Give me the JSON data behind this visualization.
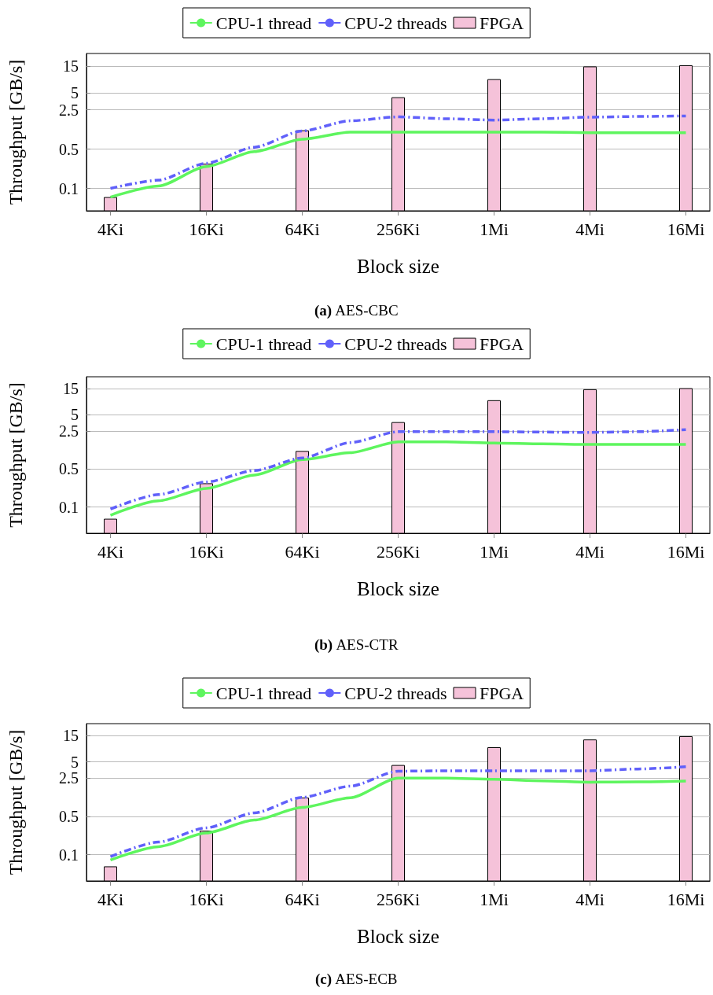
{
  "chart_data": [
    {
      "type": "bar",
      "title": "(a) AES-CBC",
      "xlabel": "Block size",
      "ylabel": "Throughput [GB/s]",
      "log": "y",
      "grid": "y",
      "legend": "top",
      "marker": "none",
      "categories": [
        "4Ki",
        null,
        "16Ki",
        null,
        "64Ki",
        null,
        "256Ki",
        null,
        "1Mi",
        null,
        "4Mi",
        null,
        "16Mi"
      ],
      "ylim": [
        0.04,
        25
      ],
      "yticks": [
        0.1,
        0.5,
        2.5,
        5,
        15
      ],
      "series": [
        {
          "name": "CPU-1 thread",
          "type": "line",
          "line_style": "solid",
          "color": "#5ef55e",
          "values": [
            0.07,
            0.11,
            0.245,
            0.45,
            0.75,
            1.0,
            1.0,
            1.0,
            1.0,
            1.0,
            0.98,
            0.98,
            0.98
          ]
        },
        {
          "name": "CPU-2 threads",
          "type": "line",
          "line_style": "dashed",
          "color": "#6060fa",
          "values": [
            0.1,
            0.14,
            0.28,
            0.54,
            1.05,
            1.59,
            1.87,
            1.73,
            1.64,
            1.73,
            1.85,
            1.9,
            1.94
          ]
        },
        {
          "name": "FPGA",
          "color": "#f5c2d9",
          "values": [
            0.069,
            null,
            0.27,
            null,
            1.06,
            null,
            4.1,
            null,
            8.6,
            null,
            14.5,
            null,
            15.2
          ]
        }
      ]
    },
    {
      "type": "bar",
      "title": "(b) AES-CTR",
      "xlabel": "Block size",
      "ylabel": "Throughput [GB/s]",
      "log": "y",
      "grid": "y",
      "legend": "top",
      "marker": "none",
      "categories": [
        "4Ki",
        null,
        "16Ki",
        null,
        "64Ki",
        null,
        "256Ki",
        null,
        "1Mi",
        null,
        "4Mi",
        null,
        "16Mi"
      ],
      "ylim": [
        0.033,
        25
      ],
      "yticks": [
        0.1,
        0.5,
        2.5,
        5,
        15
      ],
      "series": [
        {
          "name": "CPU-1 thread",
          "type": "line",
          "line_style": "solid",
          "color": "#5ef55e",
          "values": [
            0.071,
            0.13,
            0.22,
            0.39,
            0.75,
            1.0,
            1.59,
            1.59,
            1.51,
            1.46,
            1.42,
            1.42,
            1.42
          ]
        },
        {
          "name": "CPU-2 threads",
          "type": "line",
          "line_style": "dashed",
          "color": "#6060fa",
          "values": [
            0.092,
            0.17,
            0.29,
            0.47,
            0.8,
            1.54,
            2.44,
            2.44,
            2.44,
            2.4,
            2.37,
            2.44,
            2.67
          ]
        },
        {
          "name": "FPGA",
          "color": "#f5c2d9",
          "values": [
            0.06,
            null,
            0.27,
            null,
            1.06,
            null,
            3.6,
            null,
            9.1,
            null,
            14.5,
            null,
            15.2
          ]
        }
      ]
    },
    {
      "type": "bar",
      "title": "(c) AES-ECB",
      "xlabel": "Block size",
      "ylabel": "Throughput [GB/s]",
      "log": "y",
      "grid": "y",
      "legend": "top",
      "marker": "none",
      "categories": [
        "4Ki",
        null,
        "16Ki",
        null,
        "64Ki",
        null,
        "256Ki",
        null,
        "1Mi",
        null,
        "4Mi",
        null,
        "16Mi"
      ],
      "ylim": [
        0.033,
        25
      ],
      "yticks": [
        0.1,
        0.5,
        2.5,
        5,
        15
      ],
      "series": [
        {
          "name": "CPU-1 thread",
          "type": "line",
          "line_style": "solid",
          "color": "#5ef55e",
          "values": [
            0.08,
            0.14,
            0.25,
            0.43,
            0.73,
            1.1,
            2.52,
            2.52,
            2.39,
            2.25,
            2.12,
            2.15,
            2.23
          ]
        },
        {
          "name": "CPU-2 threads",
          "type": "line",
          "line_style": "dashed",
          "color": "#6060fa",
          "values": [
            0.092,
            0.17,
            0.31,
            0.58,
            1.12,
            1.79,
            3.37,
            3.43,
            3.43,
            3.43,
            3.43,
            3.7,
            4.06
          ]
        },
        {
          "name": "FPGA",
          "color": "#f5c2d9",
          "values": [
            0.06,
            null,
            0.27,
            null,
            1.09,
            null,
            4.3,
            null,
            9.1,
            null,
            12.6,
            null,
            14.5
          ]
        }
      ]
    }
  ]
}
